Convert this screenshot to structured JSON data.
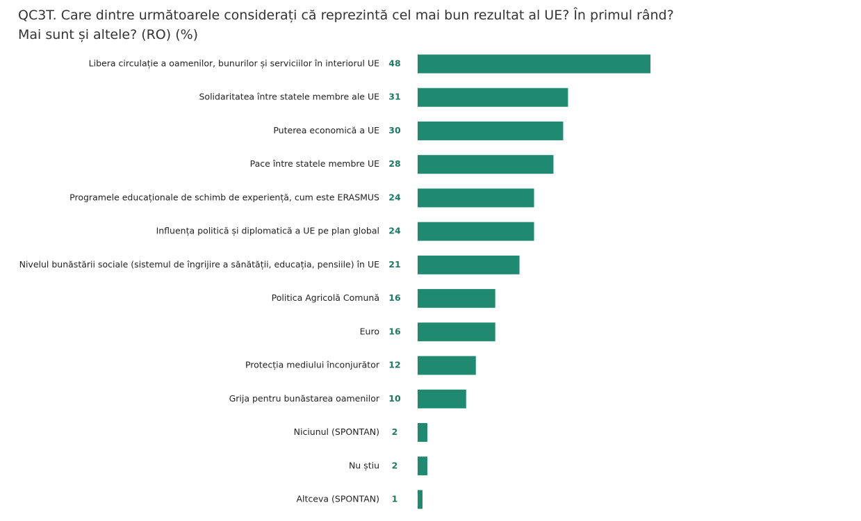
{
  "chart_data": {
    "type": "bar",
    "orientation": "horizontal",
    "title": "QC3T. Care dintre următoarele considerați că reprezintă cel mai bun rezultat al UE? În primul rând? Mai sunt și altele? (RO) (%)",
    "categories": [
      "Libera circulație a oamenilor, bunurilor și serviciilor în interiorul UE",
      "Solidaritatea între statele membre ale UE",
      "Puterea economică a UE",
      "Pace între statele membre UE",
      "Programele educaționale de schimb de experiență, cum este ERASMUS",
      "Influența politică și diplomatică a UE pe plan global",
      "Nivelul bunăstării sociale (sistemul de îngrijire a sănătății, educația, pensiile) în UE",
      "Politica Agricolă Comună",
      "Euro",
      "Protecția mediului înconjurător",
      "Grija pentru bunăstarea oamenilor",
      "Niciunul (SPONTAN)",
      "Nu știu",
      "Altceva (SPONTAN)"
    ],
    "values": [
      48,
      31,
      30,
      28,
      24,
      24,
      21,
      16,
      16,
      12,
      10,
      2,
      2,
      1
    ],
    "color": "#1f8a6f"
  }
}
